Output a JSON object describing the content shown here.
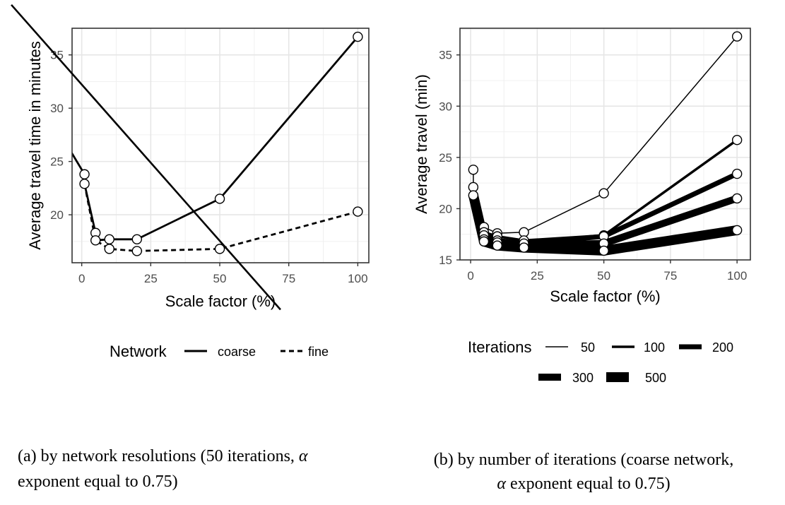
{
  "chart_data": [
    {
      "type": "line",
      "xlabel": "Scale factor (%)",
      "ylabel": "Average travel time in minutes",
      "xlim": [
        -3.5,
        104
      ],
      "ylim": [
        15.5,
        37.5
      ],
      "xticks": [
        0,
        25,
        50,
        75,
        100
      ],
      "yticks": [
        20,
        25,
        30,
        35
      ],
      "grid": true,
      "legend": {
        "title": "Network",
        "position": "bottom"
      },
      "series": [
        {
          "name": "coarse",
          "dash": "solid",
          "x": [
            -5,
            1,
            1,
            5,
            5,
            10,
            20,
            50,
            100
          ],
          "y": [
            26.4,
            23.8,
            22.9,
            18.3,
            17.6,
            17.7,
            17.7,
            21.5,
            36.7
          ],
          "markers": [
            [
              1,
              23.8
            ],
            [
              1,
              22.9
            ],
            [
              5,
              18.3
            ],
            [
              5,
              17.6
            ],
            [
              10,
              17.7
            ],
            [
              20,
              17.7
            ],
            [
              50,
              21.5
            ],
            [
              100,
              36.7
            ]
          ]
        },
        {
          "name": "fine",
          "dash": "dashed",
          "x": [
            1,
            5,
            10,
            20,
            50,
            100
          ],
          "y": [
            22.9,
            17.6,
            16.8,
            16.6,
            16.8,
            20.3
          ],
          "markers": [
            [
              10,
              16.8
            ],
            [
              20,
              16.6
            ],
            [
              50,
              16.8
            ],
            [
              100,
              20.3
            ]
          ]
        }
      ],
      "overlay_line": [
        [
          -25.5,
          39.7
        ],
        [
          72,
          11.1
        ]
      ],
      "caption": [
        {
          "prefix": "(a) by network resolutions (50 iterations, ",
          "symbol": "α"
        },
        {
          "prefix": "exponent equal to 0.75)",
          "symbol": ""
        }
      ]
    },
    {
      "type": "line",
      "xlabel": "Scale factor (%)",
      "ylabel": "Average travel (min)",
      "xlim": [
        -4,
        105
      ],
      "ylim": [
        15,
        37.6
      ],
      "xticks": [
        0,
        25,
        50,
        75,
        100
      ],
      "yticks": [
        15,
        20,
        25,
        30,
        35
      ],
      "grid": true,
      "legend": {
        "title": "Iterations",
        "position": "bottom"
      },
      "series": [
        {
          "name": "50",
          "width": 1.5,
          "x": [
            1,
            1,
            5,
            10,
            20,
            50,
            100
          ],
          "y": [
            23.8,
            22.1,
            18.2,
            17.6,
            17.7,
            21.5,
            36.8
          ]
        },
        {
          "name": "100",
          "width": 3.5,
          "x": [
            1,
            1,
            5,
            10,
            20,
            50,
            100
          ],
          "y": [
            22.1,
            21.3,
            17.7,
            17.3,
            16.9,
            17.4,
            26.7
          ]
        },
        {
          "name": "200",
          "width": 7,
          "x": [
            1,
            5,
            10,
            20,
            50,
            100
          ],
          "y": [
            21.3,
            17.4,
            16.9,
            16.6,
            17.3,
            23.4
          ]
        },
        {
          "name": "300",
          "width": 10,
          "x": [
            1,
            5,
            10,
            20,
            50,
            100
          ],
          "y": [
            21.3,
            17.0,
            16.7,
            16.4,
            16.6,
            21.0
          ]
        },
        {
          "name": "500",
          "width": 14,
          "x": [
            1,
            5,
            10,
            20,
            50,
            100
          ],
          "y": [
            21.3,
            16.8,
            16.4,
            16.2,
            15.9,
            17.9
          ]
        }
      ],
      "markers": [
        [
          1,
          23.8
        ],
        [
          1,
          22.1
        ],
        [
          1,
          21.3
        ],
        [
          5,
          18.2
        ],
        [
          5,
          17.7
        ],
        [
          5,
          17.4
        ],
        [
          5,
          17.0
        ],
        [
          5,
          16.8
        ],
        [
          10,
          17.6
        ],
        [
          10,
          17.3
        ],
        [
          10,
          16.9
        ],
        [
          10,
          16.7
        ],
        [
          10,
          16.4
        ],
        [
          20,
          17.7
        ],
        [
          20,
          16.9
        ],
        [
          20,
          16.6
        ],
        [
          20,
          16.2
        ],
        [
          50,
          21.5
        ],
        [
          50,
          17.4
        ],
        [
          50,
          17.3
        ],
        [
          50,
          16.6
        ],
        [
          50,
          15.9
        ],
        [
          100,
          36.8
        ],
        [
          100,
          26.7
        ],
        [
          100,
          23.4
        ],
        [
          100,
          21.0
        ],
        [
          100,
          17.9
        ]
      ],
      "caption": [
        {
          "prefix": "(b) by number of iterations (coarse network,",
          "symbol": ""
        },
        {
          "prefix": " exponent equal to 0.75)",
          "symbol": "α"
        }
      ]
    }
  ]
}
